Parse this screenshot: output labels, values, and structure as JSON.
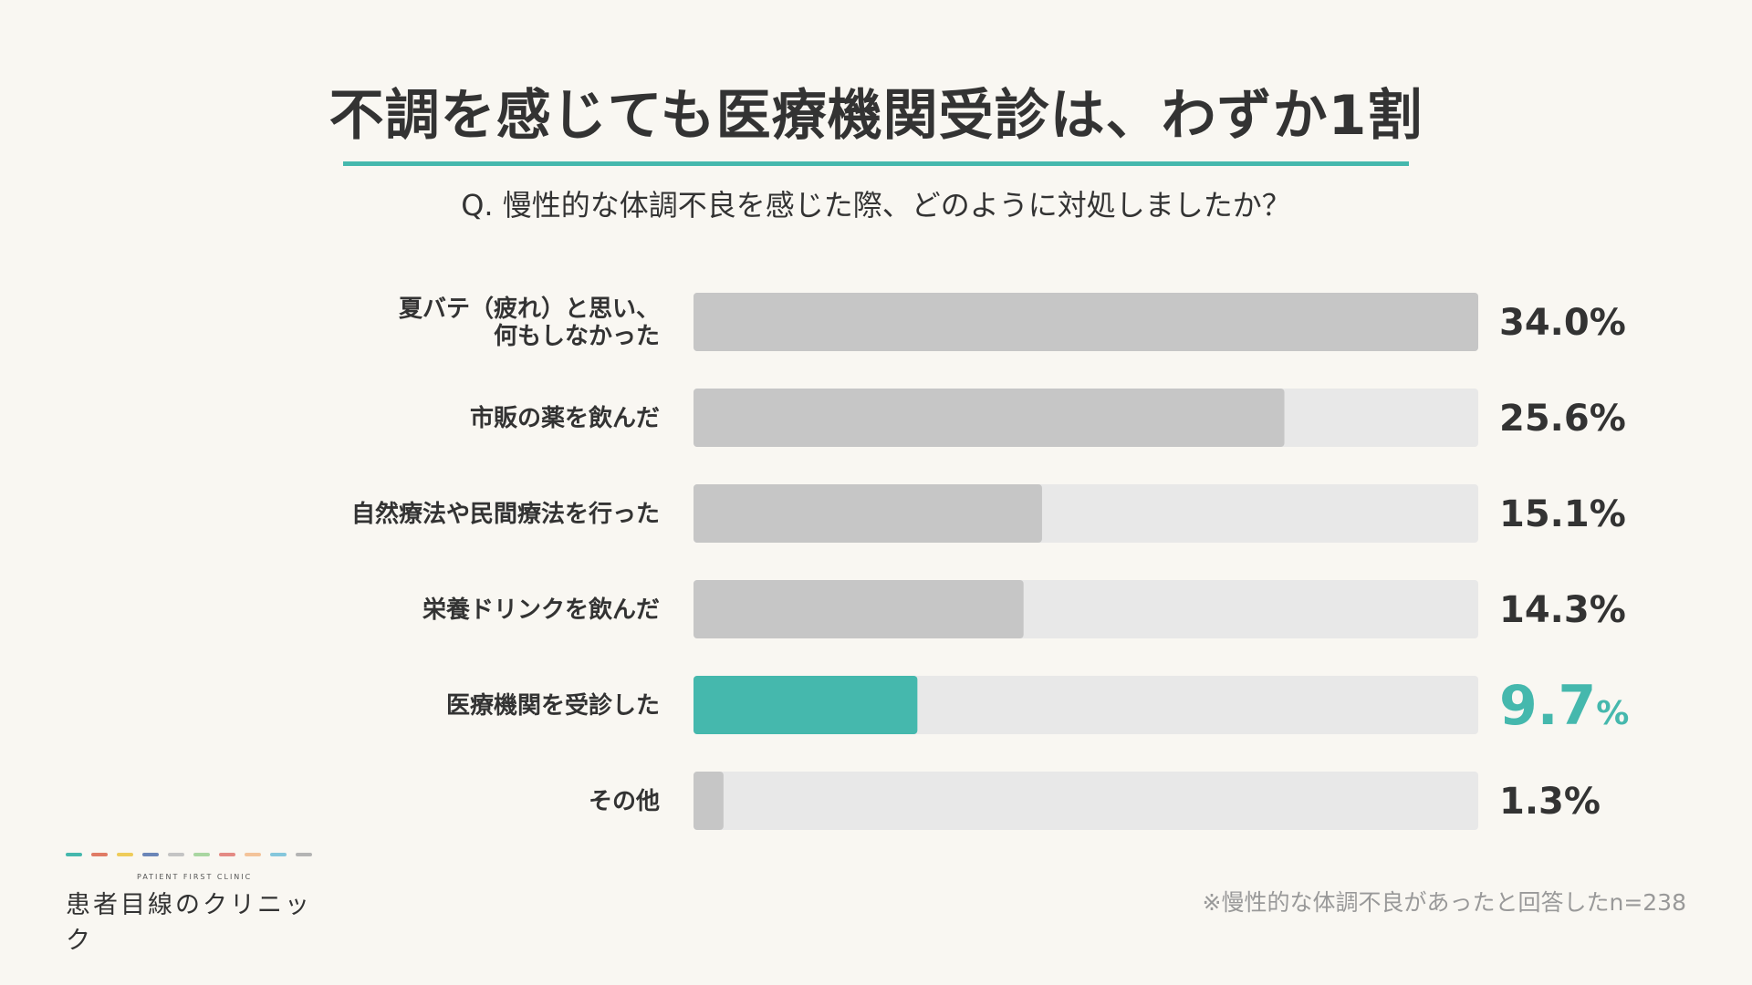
{
  "title": "不調を感じても医療機関受診は、わずか1割",
  "question": "Q. 慢性的な体調不良を感じた際、どのように対処しましたか？",
  "footnote": "※慢性的な体調不良があったと回答したn=238",
  "logo": {
    "sub": "PATIENT FIRST CLINIC",
    "name": "患者目線のクリニック",
    "dash_colors": [
      "#45b8ad",
      "#e07b65",
      "#efcc5a",
      "#6b86b8",
      "#c4c4c4",
      "#a9d6a1",
      "#e48a84",
      "#f3c39a",
      "#85c7dc",
      "#b4b4b4"
    ]
  },
  "colors": {
    "bar": "#c6c6c6",
    "track": "#e8e8e8",
    "highlight": "#45b8ad"
  },
  "chart_data": {
    "type": "bar",
    "orientation": "horizontal",
    "categories": [
      [
        "夏バテ（疲れ）と思い、",
        "何もしなかった"
      ],
      [
        "市販の薬を飲んだ"
      ],
      [
        "自然療法や民間療法を行った"
      ],
      [
        "栄養ドリンクを飲んだ"
      ],
      [
        "医療機関を受診した"
      ],
      [
        "その他"
      ]
    ],
    "values": [
      34.0,
      25.6,
      15.1,
      14.3,
      9.7,
      1.3
    ],
    "value_labels": [
      "34.0",
      "25.6",
      "15.1",
      "14.3",
      "9.7",
      "1.3"
    ],
    "unit": "%",
    "highlight_index": 4,
    "xlim": [
      0,
      34.0
    ],
    "grid": false,
    "legend": "none"
  }
}
